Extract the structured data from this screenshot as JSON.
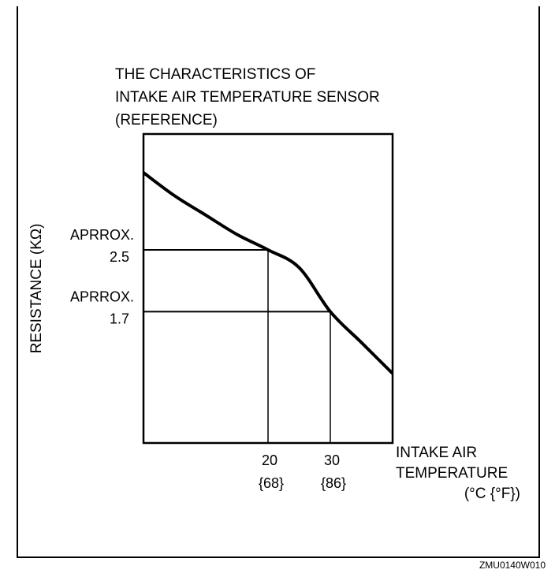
{
  "figure_code": "ZMU0140W010",
  "chart_data": {
    "type": "line",
    "title_lines": [
      "THE CHARACTERISTICS OF",
      "INTAKE AIR TEMPERATURE SENSOR",
      "(REFERENCE)"
    ],
    "ylabel": "RESISTANCE (KΩ)",
    "xlabel_lines": [
      "INTAKE AIR",
      "TEMPERATURE"
    ],
    "x_unit": "(°C {°F})",
    "grid": false,
    "xlim": [
      0,
      40
    ],
    "ylim": [
      0,
      4
    ],
    "x_ticks": [
      {
        "value": 20,
        "label": "20",
        "sub": "{68}"
      },
      {
        "value": 30,
        "label": "30",
        "sub": "{86}"
      }
    ],
    "y_ticks": [
      {
        "value": 2.5,
        "label": "APRROX.",
        "sub": "2.5"
      },
      {
        "value": 1.7,
        "label": "APRROX.",
        "sub": "1.7"
      }
    ],
    "series": [
      {
        "x": [
          0,
          5,
          10,
          15,
          20,
          25,
          30,
          35,
          40
        ],
        "y": [
          3.5,
          3.2,
          2.95,
          2.7,
          2.5,
          2.27,
          1.7,
          1.3,
          0.9
        ]
      }
    ],
    "reference_lines": [
      {
        "x": 20,
        "y": 2.5
      },
      {
        "x": 30,
        "y": 1.7
      }
    ]
  }
}
